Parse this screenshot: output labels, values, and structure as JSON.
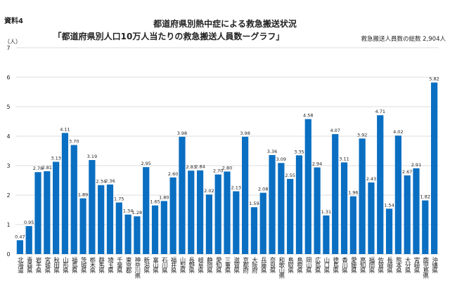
{
  "chart_data": {
    "type": "bar",
    "label": "資料4",
    "title": "都道府県別熱中症による救急搬送状況",
    "subtitle": "「都道府県別人口10万人当たりの救急搬送人員数ーグラフ」",
    "annotation": "救急搬送人員数の総数 2,904人",
    "y_label": "（人）",
    "categories": [
      "北海道",
      "青森県",
      "岩手県",
      "宮城県",
      "秋田県",
      "山形県",
      "福島県",
      "茨城県",
      "栃木県",
      "群馬県",
      "埼玉県",
      "千葉県",
      "東京都",
      "神奈川県",
      "新潟県",
      "富山県",
      "石川県",
      "福井県",
      "山梨県",
      "長野県",
      "岐阜県",
      "静岡県",
      "愛知県",
      "三重県",
      "滋賀県",
      "京都府",
      "大阪府",
      "兵庫県",
      "奈良県",
      "和歌山県",
      "鳥取県",
      "島根県",
      "岡山県",
      "広島県",
      "山口県",
      "徳島県",
      "香川県",
      "愛媛県",
      "高知県",
      "福岡県",
      "佐賀県",
      "長崎県",
      "熊本県",
      "大分県",
      "宮崎県",
      "鹿児島県",
      "沖縄県"
    ],
    "values": [
      0.47,
      0.95,
      2.78,
      2.81,
      3.13,
      4.11,
      3.7,
      1.89,
      3.19,
      2.34,
      2.36,
      1.75,
      1.34,
      1.28,
      2.95,
      1.65,
      1.8,
      2.6,
      3.98,
      2.83,
      2.84,
      2.02,
      2.7,
      2.8,
      2.13,
      3.98,
      1.59,
      2.08,
      3.36,
      3.09,
      2.55,
      3.35,
      4.58,
      2.94,
      1.31,
      4.07,
      3.11,
      1.96,
      3.92,
      2.43,
      4.71,
      1.54,
      4.02,
      2.67,
      2.91,
      1.82,
      5.82
    ],
    "value_labels": [
      "0.47",
      "0.95",
      "2.78",
      "2.81",
      "3.13",
      "4.11",
      "3.70",
      "1.89",
      "3.19",
      "2.34",
      "2.36",
      "1.75",
      "1.34",
      "1.28",
      "2.95",
      "1.65",
      "1.80",
      "2.60",
      "3.98",
      "2.83",
      "2.84",
      "2.02",
      "2.70",
      "2.80",
      "2.13",
      "3.98",
      "1.59",
      "2.08",
      "3.36",
      "3.09",
      "2.55",
      "3.35",
      "4.58",
      "2.94",
      "1.31",
      "4.07",
      "3.11",
      "1.96",
      "3.92",
      "2.43",
      "4.71",
      "1.54",
      "4.02",
      "2.67",
      "2.91",
      "1.82",
      "5.82"
    ],
    "color": "#0a6fc2",
    "ylim": [
      0,
      7
    ],
    "yticks": [
      0,
      1,
      2,
      3,
      4,
      5,
      6,
      7
    ],
    "grid": true
  }
}
